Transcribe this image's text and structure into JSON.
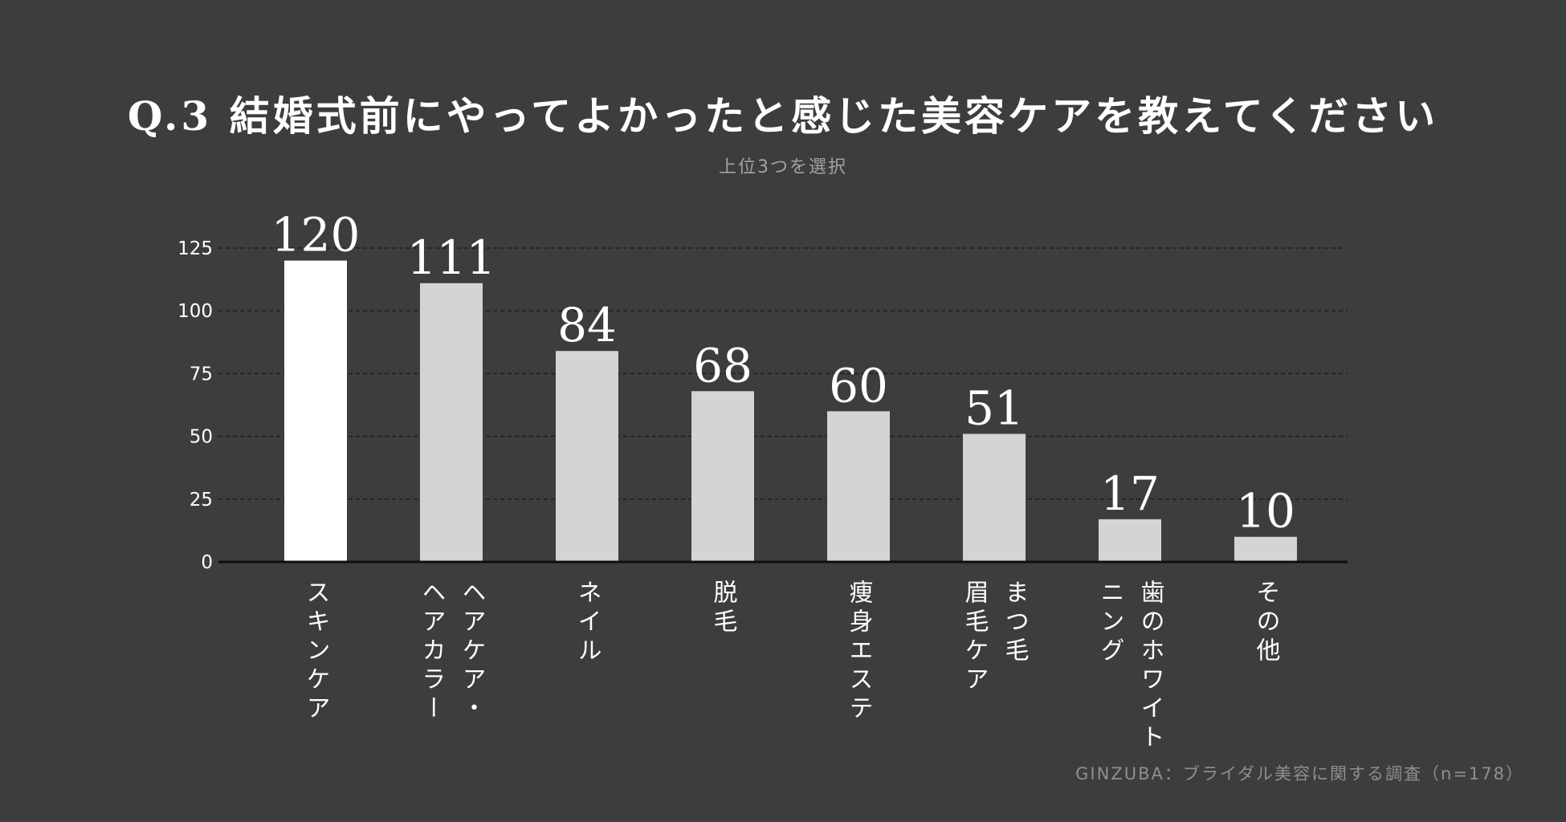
{
  "title": "Q.3  結婚式前にやってよかったと感じた美容ケアを教えてください",
  "subtitle": "上位3つを選択",
  "source": "GINZUBA：ブライダル美容に関する調査（n=178）",
  "colors": {
    "background": "#3c3d3e",
    "bar": "#d4d4d4",
    "bar_highlight": "#ffffff",
    "grid": "#1e1e1e",
    "text": "#ffffff"
  },
  "chart_data": {
    "type": "bar",
    "categories": [
      "スキンケア",
      "ヘアケア・ヘアカラー",
      "ネイル",
      "脱毛",
      "痩身エステ",
      "まつ毛眉毛ケア",
      "歯のホワイトニング",
      "その他"
    ],
    "category_label_columns": [
      [
        "スキンケア"
      ],
      [
        "ヘアケア・",
        "ヘアカラー"
      ],
      [
        "ネイル"
      ],
      [
        "脱毛"
      ],
      [
        "痩身エステ"
      ],
      [
        "まつ毛",
        "眉毛ケア"
      ],
      [
        "歯のホワイト",
        "ニング"
      ],
      [
        "その他"
      ]
    ],
    "values": [
      120,
      111,
      84,
      68,
      60,
      51,
      17,
      10
    ],
    "highlight_index": 0,
    "ylim": [
      0,
      125
    ],
    "yticks": [
      0,
      25,
      50,
      75,
      100,
      125
    ],
    "grid": true,
    "xlabel": "",
    "ylabel": ""
  }
}
